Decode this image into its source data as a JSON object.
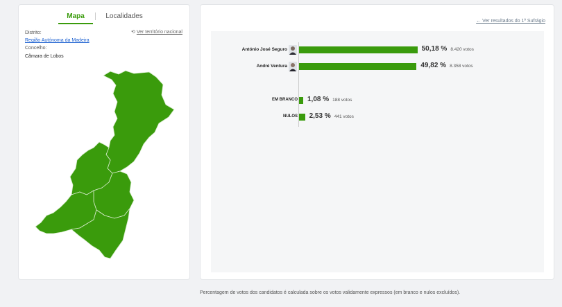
{
  "tabs": {
    "map": "Mapa",
    "localities": "Localidades"
  },
  "location": {
    "district_label": "Distrito:",
    "district_value": "Região Autónoma da Madeira",
    "council_label": "Concelho:",
    "council_value": "Câmara de Lobos",
    "national_link": "Ver território nacional"
  },
  "first_round_link": "← Ver resultados do 1º Sufrágio",
  "candidates": [
    {
      "name": "António José Seguro",
      "pct": "50,18 %",
      "votes": "8.420 votos",
      "share": 50.18
    },
    {
      "name": "André Ventura",
      "pct": "49,82 %",
      "votes": "8.358 votos",
      "share": 49.82
    }
  ],
  "others": [
    {
      "name": "EM BRANCO",
      "pct": "1,08 %",
      "votes": "188 votos",
      "share": 1.08
    },
    {
      "name": "NULOS",
      "pct": "2,53 %",
      "votes": "441 votos",
      "share": 2.53
    }
  ],
  "footnote": "Percentagem de votos dos candidatos é calculada sobre os votos validamente expressos (em branco e nulos excluídos).",
  "colors": {
    "accent": "#3a9b0c",
    "link": "#1a5fd0"
  }
}
